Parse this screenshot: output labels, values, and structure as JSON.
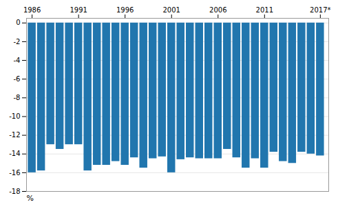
{
  "chart_data": {
    "type": "bar",
    "x": [
      1986,
      1987,
      1988,
      1989,
      1990,
      1991,
      1992,
      1993,
      1994,
      1995,
      1996,
      1997,
      1998,
      1999,
      2000,
      2001,
      2002,
      2003,
      2004,
      2005,
      2006,
      2007,
      2008,
      2009,
      2010,
      2011,
      2012,
      2013,
      2014,
      2015,
      2016,
      2017
    ],
    "values": [
      -16.0,
      -15.8,
      -13.0,
      -13.5,
      -13.0,
      -13.0,
      -15.8,
      -15.2,
      -15.2,
      -14.8,
      -15.2,
      -14.4,
      -15.5,
      -14.5,
      -14.3,
      -16.0,
      -14.6,
      -14.4,
      -14.5,
      -14.5,
      -14.5,
      -13.5,
      -14.4,
      -15.5,
      -14.5,
      -15.5,
      -13.8,
      -14.8,
      -15.0,
      -13.8,
      -14.0,
      -14.2
    ],
    "color": "#2176ae",
    "ylabel": "%",
    "xlim": [
      1985.4,
      2017.9
    ],
    "xticks": [
      1986,
      1991,
      1996,
      2001,
      2006,
      2011,
      {
        "value": 2017,
        "label": "2017*"
      }
    ],
    "ylim": [
      -18,
      0.5
    ],
    "yticks": [
      0,
      -2,
      -4,
      -6,
      -8,
      -10,
      -12,
      -14,
      -16,
      -18
    ],
    "grid": true
  }
}
